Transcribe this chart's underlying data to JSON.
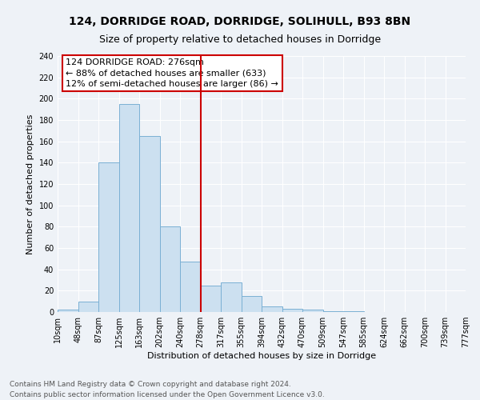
{
  "title1": "124, DORRIDGE ROAD, DORRIDGE, SOLIHULL, B93 8BN",
  "title2": "Size of property relative to detached houses in Dorridge",
  "xlabel": "Distribution of detached houses by size in Dorridge",
  "ylabel": "Number of detached properties",
  "footnote1": "Contains HM Land Registry data © Crown copyright and database right 2024.",
  "footnote2": "Contains public sector information licensed under the Open Government Licence v3.0.",
  "annotation_line1": "124 DORRIDGE ROAD: 276sqm",
  "annotation_line2": "← 88% of detached houses are smaller (633)",
  "annotation_line3": "12% of semi-detached houses are larger (86) →",
  "bin_labels": [
    "10sqm",
    "48sqm",
    "87sqm",
    "125sqm",
    "163sqm",
    "202sqm",
    "240sqm",
    "278sqm",
    "317sqm",
    "355sqm",
    "394sqm",
    "432sqm",
    "470sqm",
    "509sqm",
    "547sqm",
    "585sqm",
    "624sqm",
    "662sqm",
    "700sqm",
    "739sqm",
    "777sqm"
  ],
  "bar_values": [
    2,
    10,
    140,
    195,
    165,
    80,
    47,
    25,
    28,
    15,
    5,
    3,
    2,
    1,
    1,
    0,
    0,
    0,
    0,
    0
  ],
  "vline_position": 7,
  "bar_color": "#cce0f0",
  "bar_edge_color": "#7ab0d4",
  "vline_color": "#cc0000",
  "ylim": [
    0,
    240
  ],
  "yticks": [
    0,
    20,
    40,
    60,
    80,
    100,
    120,
    140,
    160,
    180,
    200,
    220,
    240
  ],
  "bg_color": "#eef2f7",
  "grid_color": "#ffffff",
  "annotation_box_facecolor": "#ffffff",
  "annotation_box_edgecolor": "#cc0000",
  "title1_fontsize": 10,
  "title2_fontsize": 9,
  "axis_label_fontsize": 8,
  "tick_fontsize": 7,
  "annotation_fontsize": 8,
  "footnote_fontsize": 6.5
}
